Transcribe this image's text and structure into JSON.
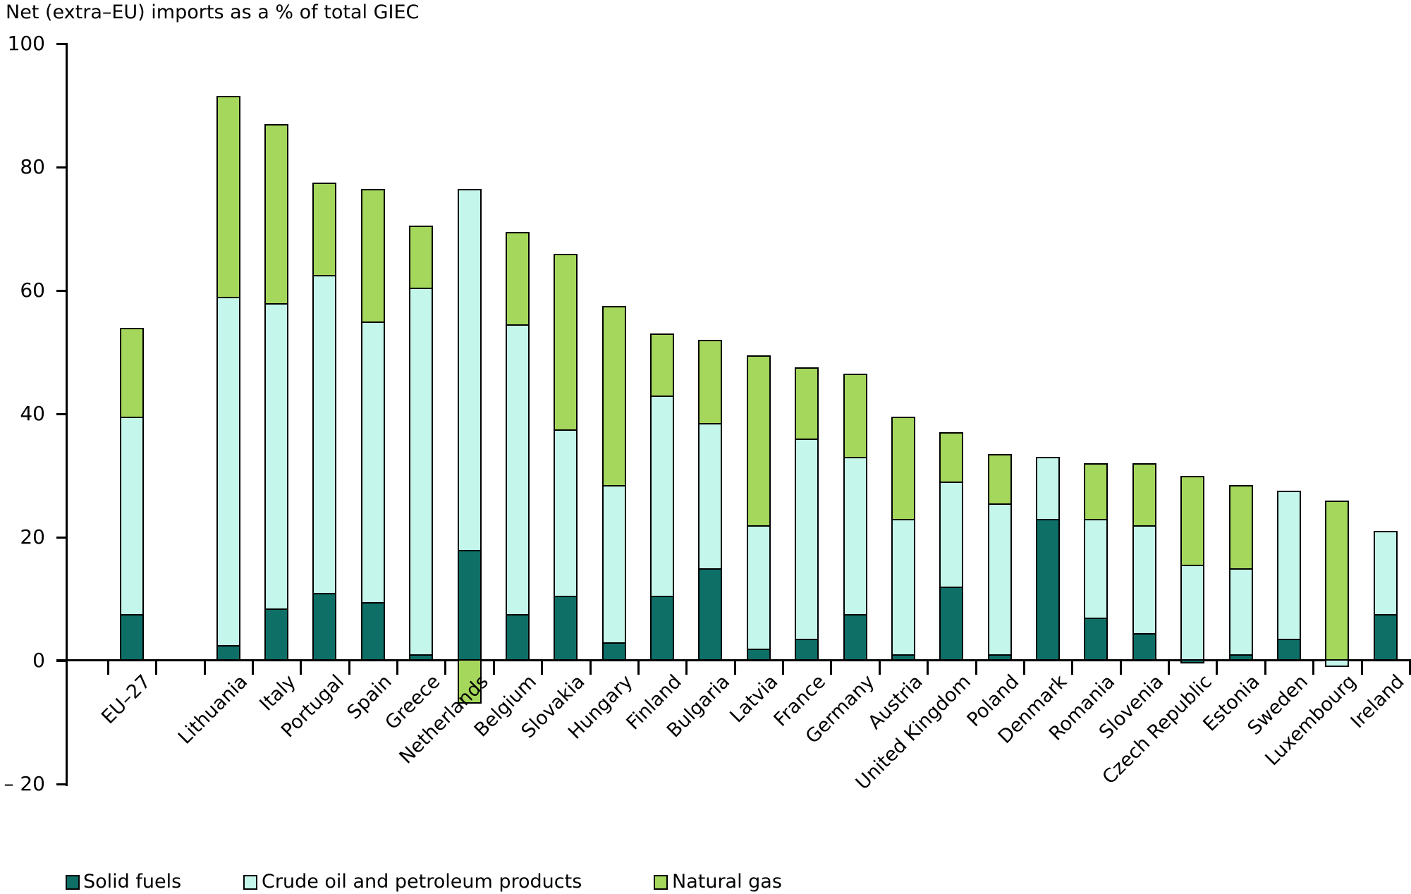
{
  "title": "Net (extra–EU) imports as a % of total GIEC",
  "chart_data": {
    "type": "bar",
    "stacked": true,
    "title": "Net (extra–EU) imports as a % of total GIEC",
    "xlabel": "",
    "ylabel": "Net (extra–EU) imports as a % of total GIEC",
    "ylim": [
      -20,
      100
    ],
    "y_ticks": [
      100,
      80,
      60,
      40,
      20,
      0,
      -20
    ],
    "y_tick_labels": [
      "100",
      "80",
      "60",
      "40",
      "20",
      "0",
      "– 20"
    ],
    "grid": false,
    "legend_position": "bottom",
    "gap_after_first_category": true,
    "categories": [
      "EU–27",
      "Lithuania",
      "Italy",
      "Portugal",
      "Spain",
      "Greece",
      "Netherlands",
      "Belgium",
      "Slovakia",
      "Hungary",
      "Finland",
      "Bulgaria",
      "Latvia",
      "France",
      "Germany",
      "Austria",
      "United Kingdom",
      "Poland",
      "Denmark",
      "Romania",
      "Slovenia",
      "Czech Republic",
      "Estonia",
      "Sweden",
      "Luxembourg",
      "Ireland"
    ],
    "series": [
      {
        "name": "Solid fuels",
        "color": "#0e6f67",
        "values": [
          7.5,
          2.5,
          8.5,
          11,
          9.5,
          1,
          18,
          7.5,
          10.5,
          3,
          10.5,
          15,
          2,
          3.5,
          7.5,
          1,
          12,
          1,
          23,
          7,
          4.5,
          -0.5,
          1,
          3.5,
          0,
          7.5
        ]
      },
      {
        "name": "Crude oil and petroleum products",
        "color": "#c5f6eb",
        "values": [
          32,
          56.5,
          49.5,
          51.5,
          45.5,
          59.5,
          58.5,
          47,
          27,
          25.5,
          32.5,
          23.5,
          20,
          32.5,
          25.5,
          22,
          17,
          24.5,
          10,
          16,
          17.5,
          15.5,
          14,
          24,
          -1,
          13.5
        ]
      },
      {
        "name": "Natural gas",
        "color": "#a5d75c",
        "values": [
          14.5,
          32.5,
          29,
          15,
          21.5,
          10,
          -7,
          15,
          28.5,
          29,
          10,
          13.5,
          27.5,
          11.5,
          13.5,
          16.5,
          8,
          8,
          0,
          9,
          10,
          14.5,
          13.5,
          0,
          26,
          0
        ]
      }
    ]
  },
  "legend": {
    "items": [
      {
        "label": "Solid fuels",
        "color": "#0e6f67"
      },
      {
        "label": "Crude oil and petroleum products",
        "color": "#c5f6eb"
      },
      {
        "label": "Natural gas",
        "color": "#a5d75c"
      }
    ]
  }
}
